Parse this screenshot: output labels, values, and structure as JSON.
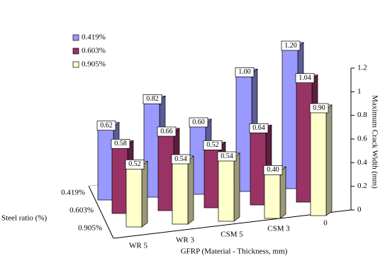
{
  "chart_data": {
    "type": "bar3d",
    "categories": [
      "WR 5",
      "WR 3",
      "CSM 5",
      "CSM 3",
      "0"
    ],
    "series": [
      {
        "name": "0.419%",
        "color": "#9999ff",
        "values": [
          0.62,
          0.82,
          0.6,
          1.0,
          1.2
        ],
        "value_labels": [
          "0.62",
          "0.82",
          "0.60",
          "1.00",
          "1.20"
        ]
      },
      {
        "name": "0.603%",
        "color": "#993366",
        "values": [
          0.58,
          0.66,
          0.52,
          0.64,
          1.04
        ],
        "value_labels": [
          "0.58",
          "0.66",
          "0.52",
          "0.64",
          "1.04"
        ]
      },
      {
        "name": "0.905%",
        "color": "#ffffcc",
        "values": [
          0.52,
          0.54,
          0.54,
          0.4,
          0.9
        ],
        "value_labels": [
          "0.52",
          "0.54",
          "0.54",
          "0.40",
          "0.90"
        ]
      }
    ],
    "ylim": [
      0,
      1.2
    ],
    "yticks": [
      0,
      0.2,
      0.4,
      0.6,
      0.8,
      1,
      1.2
    ],
    "y_label": "Maximum Crack Width (mm)",
    "x_label": "GFRP (Material - Thickness, mm)",
    "z_label": "Steel ratio (%)",
    "legend": "upper left"
  }
}
